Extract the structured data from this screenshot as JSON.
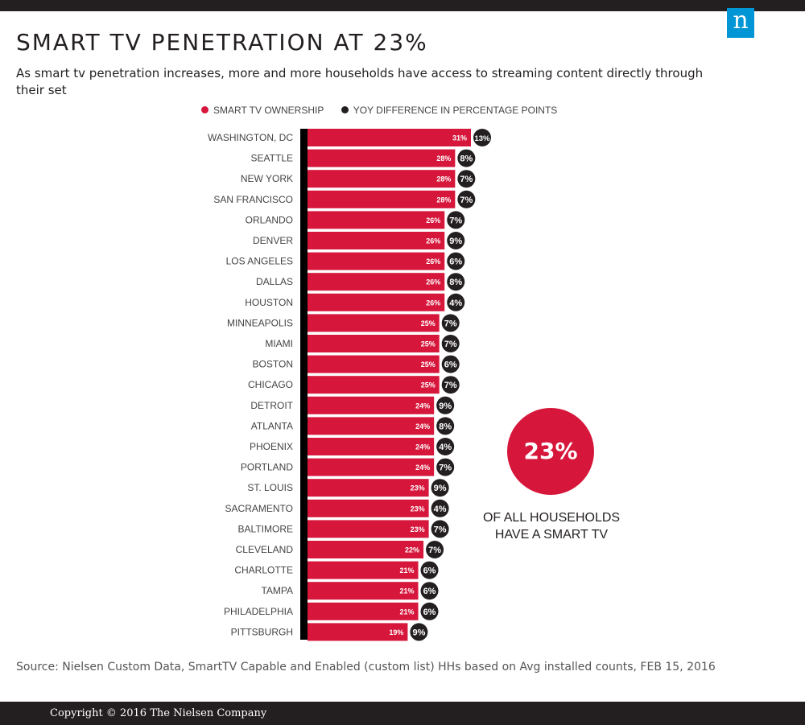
{
  "header": {
    "title": "SMART TV PENETRATION AT 23%",
    "subtitle": "As smart tv penetration increases, more and more households have access to streaming content directly through their set",
    "logo_letter": "n"
  },
  "legend": [
    {
      "label": "SMART TV OWNERSHIP",
      "color": "#d6163a"
    },
    {
      "label": "YOY DIFFERENCE IN PERCENTAGE POINTS",
      "color": "#231f20"
    }
  ],
  "callout": {
    "value": "23%",
    "caption_line1": "OF ALL HOUSEHOLDS",
    "caption_line2": "HAVE A SMART TV"
  },
  "source": "Source: Nielsen Custom Data, SmartTV Capable and Enabled (custom list) HHs based on Avg installed counts, FEB 15, 2016",
  "footer": "Copyright © 2016 The Nielsen Company",
  "colors": {
    "bar": "#d6163a",
    "dot": "#231f20",
    "axis": "#000000",
    "logo": "#0095d5"
  },
  "chart_data": {
    "type": "bar",
    "orientation": "horizontal",
    "categories": [
      "WASHINGTON, DC",
      "SEATTLE",
      "NEW YORK",
      "SAN FRANCISCO",
      "ORLANDO",
      "DENVER",
      "LOS ANGELES",
      "DALLAS",
      "HOUSTON",
      "MINNEAPOLIS",
      "MIAMI",
      "BOSTON",
      "CHICAGO",
      "DETROIT",
      "ATLANTA",
      "PHOENIX",
      "PORTLAND",
      "ST. LOUIS",
      "SACRAMENTO",
      "BALTIMORE",
      "CLEVELAND",
      "CHARLOTTE",
      "TAMPA",
      "PHILADELPHIA",
      "PITTSBURGH"
    ],
    "series": [
      {
        "name": "SMART TV OWNERSHIP",
        "values": [
          31,
          28,
          28,
          28,
          26,
          26,
          26,
          26,
          26,
          25,
          25,
          25,
          25,
          24,
          24,
          24,
          24,
          23,
          23,
          23,
          22,
          21,
          21,
          21,
          19
        ]
      },
      {
        "name": "YOY DIFFERENCE IN PERCENTAGE POINTS",
        "values": [
          13,
          8,
          7,
          7,
          7,
          9,
          6,
          8,
          4,
          7,
          7,
          6,
          7,
          9,
          8,
          4,
          7,
          9,
          4,
          7,
          7,
          6,
          6,
          6,
          9
        ]
      }
    ],
    "value_suffix": "%",
    "xlim": [
      0,
      31
    ]
  }
}
